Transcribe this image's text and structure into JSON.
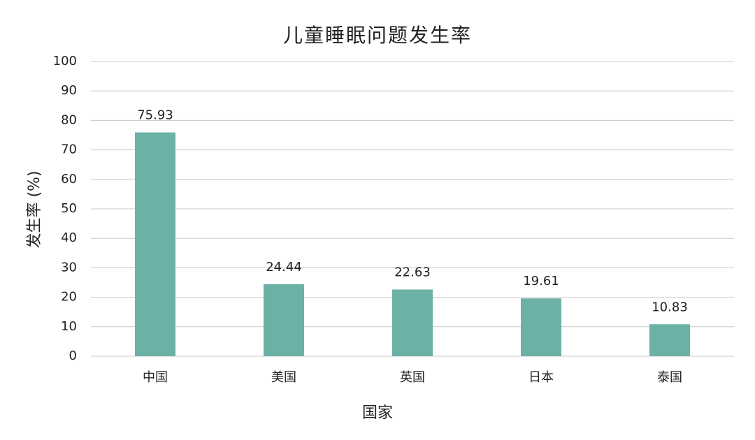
{
  "chart_data": {
    "type": "bar",
    "title": "儿童睡眠问题发生率",
    "x_label": "国家",
    "y_label": "发生率 (%)",
    "categories": [
      "中国",
      "美国",
      "英国",
      "日本",
      "泰国"
    ],
    "values": [
      75.93,
      24.44,
      22.63,
      19.61,
      10.83
    ],
    "color": "#6bb1a6",
    "ylim": [
      0,
      100
    ],
    "yticks": [
      0,
      10,
      20,
      30,
      40,
      50,
      60,
      70,
      80,
      90,
      100
    ],
    "grid": true
  }
}
